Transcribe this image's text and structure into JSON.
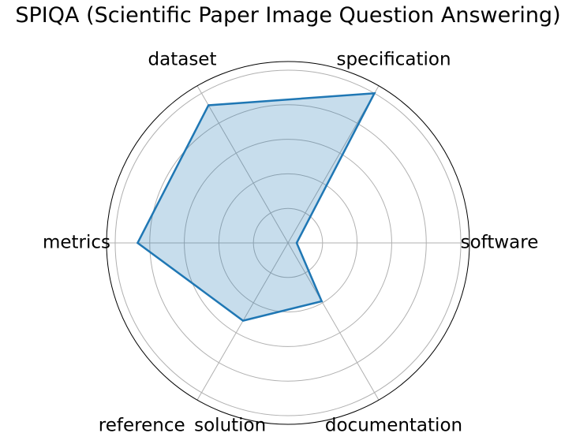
{
  "chart_data": {
    "type": "radar",
    "title": "SPIQA (Scientific Paper Image Question Answering)",
    "categories": [
      "software",
      "specification",
      "dataset",
      "metrics",
      "reference_solution",
      "documentation"
    ],
    "values": [
      0.05,
      1.0,
      0.92,
      0.87,
      0.52,
      0.39
    ],
    "rlim": [
      0,
      1.05
    ],
    "rgrid": [
      0.2,
      0.4,
      0.6,
      0.8,
      1.0
    ],
    "grid": true,
    "colors": {
      "line": "#1f77b4",
      "fill": "#1f77b4",
      "grid": "#b0b0b0",
      "frame": "#000000"
    }
  }
}
